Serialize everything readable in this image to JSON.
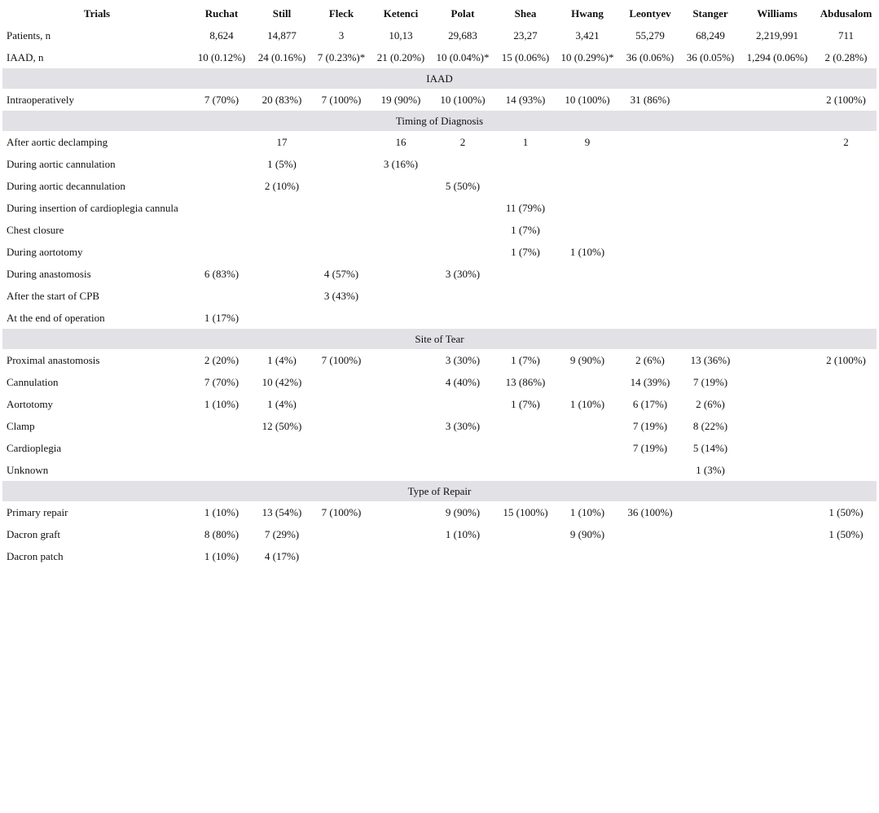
{
  "table": {
    "corner_header": "Trials",
    "columns": [
      "Ruchat",
      "Still",
      "Fleck",
      "Ketenci",
      "Polat",
      "Shea",
      "Hwang",
      "Leontyev",
      "Stanger",
      "Williams",
      "Abdusalom"
    ],
    "rows": [
      {
        "type": "data",
        "label": "Patients, n",
        "cells": [
          "8,624",
          "14,877",
          "3",
          "10,13",
          "29,683",
          "23,27",
          "3,421",
          "55,279",
          "68,249",
          "2,219,991",
          "711"
        ]
      },
      {
        "type": "data",
        "label": "IAAD, n",
        "cells": [
          "10 (0.12%)",
          "24 (0.16%)",
          "7 (0.23%)*",
          "21 (0.20%)",
          "10 (0.04%)*",
          "15 (0.06%)",
          "10 (0.29%)*",
          "36 (0.06%)",
          "36 (0.05%)",
          "1,294 (0.06%)",
          "2 (0.28%)"
        ]
      },
      {
        "type": "section",
        "label": "IAAD"
      },
      {
        "type": "data",
        "label": "Intraoperatively",
        "cells": [
          "7 (70%)",
          "20 (83%)",
          "7 (100%)",
          "19 (90%)",
          "10 (100%)",
          "14 (93%)",
          "10 (100%)",
          "31 (86%)",
          "",
          "",
          "2 (100%)"
        ]
      },
      {
        "type": "section",
        "label": "Timing of Diagnosis"
      },
      {
        "type": "data",
        "label": "After aortic declamping",
        "cells": [
          "",
          "17",
          "",
          "16",
          "2",
          "1",
          "9",
          "",
          "",
          "",
          "2"
        ]
      },
      {
        "type": "data",
        "label": "During aortic cannulation",
        "cells": [
          "",
          "1 (5%)",
          "",
          "3 (16%)",
          "",
          "",
          "",
          "",
          "",
          "",
          ""
        ]
      },
      {
        "type": "data",
        "label": "During aortic decannulation",
        "cells": [
          "",
          "2 (10%)",
          "",
          "",
          "5 (50%)",
          "",
          "",
          "",
          "",
          "",
          ""
        ]
      },
      {
        "type": "data",
        "label": "During insertion of cardioplegia cannula",
        "cells": [
          "",
          "",
          "",
          "",
          "",
          "11 (79%)",
          "",
          "",
          "",
          "",
          ""
        ]
      },
      {
        "type": "data",
        "label": "Chest closure",
        "cells": [
          "",
          "",
          "",
          "",
          "",
          "1 (7%)",
          "",
          "",
          "",
          "",
          ""
        ]
      },
      {
        "type": "data",
        "label": "During aortotomy",
        "cells": [
          "",
          "",
          "",
          "",
          "",
          "1 (7%)",
          "1 (10%)",
          "",
          "",
          "",
          ""
        ]
      },
      {
        "type": "data",
        "label": "During anastomosis",
        "cells": [
          "6 (83%)",
          "",
          "4 (57%)",
          "",
          "3 (30%)",
          "",
          "",
          "",
          "",
          "",
          ""
        ]
      },
      {
        "type": "data",
        "label": "After the start of CPB",
        "cells": [
          "",
          "",
          "3 (43%)",
          "",
          "",
          "",
          "",
          "",
          "",
          "",
          ""
        ]
      },
      {
        "type": "data",
        "label": "At the end of operation",
        "cells": [
          "1 (17%)",
          "",
          "",
          "",
          "",
          "",
          "",
          "",
          "",
          "",
          ""
        ]
      },
      {
        "type": "section",
        "label": "Site of Tear"
      },
      {
        "type": "data",
        "label": "Proximal anastomosis",
        "cells": [
          "2 (20%)",
          "1 (4%)",
          "7 (100%)",
          "",
          "3 (30%)",
          "1 (7%)",
          "9 (90%)",
          "2 (6%)",
          "13 (36%)",
          "",
          "2 (100%)"
        ]
      },
      {
        "type": "data",
        "label": "Cannulation",
        "cells": [
          "7 (70%)",
          "10 (42%)",
          "",
          "",
          "4 (40%)",
          "13 (86%)",
          "",
          "14 (39%)",
          "7 (19%)",
          "",
          ""
        ]
      },
      {
        "type": "data",
        "label": "Aortotomy",
        "cells": [
          "1 (10%)",
          "1 (4%)",
          "",
          "",
          "",
          "1 (7%)",
          "1 (10%)",
          "6 (17%)",
          "2 (6%)",
          "",
          ""
        ]
      },
      {
        "type": "data",
        "label": "Clamp",
        "cells": [
          "",
          "12 (50%)",
          "",
          "",
          "3 (30%)",
          "",
          "",
          "7 (19%)",
          "8 (22%)",
          "",
          ""
        ]
      },
      {
        "type": "data",
        "label": "Cardioplegia",
        "cells": [
          "",
          "",
          "",
          "",
          "",
          "",
          "",
          "7 (19%)",
          "5 (14%)",
          "",
          ""
        ]
      },
      {
        "type": "data",
        "label": "Unknown",
        "cells": [
          "",
          "",
          "",
          "",
          "",
          "",
          "",
          "",
          "1 (3%)",
          "",
          ""
        ]
      },
      {
        "type": "section",
        "label": "Type of Repair"
      },
      {
        "type": "data",
        "label": "Primary repair",
        "cells": [
          "1 (10%)",
          "13 (54%)",
          "7 (100%)",
          "",
          "9 (90%)",
          "15 (100%)",
          "1 (10%)",
          "36 (100%)",
          "",
          "",
          "1 (50%)"
        ]
      },
      {
        "type": "data",
        "label": "Dacron graft",
        "cells": [
          "8 (80%)",
          "7 (29%)",
          "",
          "",
          "1 (10%)",
          "",
          "9 (90%)",
          "",
          "",
          "",
          "1 (50%)"
        ]
      },
      {
        "type": "data",
        "label": "Dacron patch",
        "cells": [
          "1 (10%)",
          "4 (17%)",
          "",
          "",
          "",
          "",
          "",
          "",
          "",
          "",
          ""
        ]
      }
    ]
  },
  "colors": {
    "section_background": "#e1e1e6",
    "text": "#111111"
  }
}
